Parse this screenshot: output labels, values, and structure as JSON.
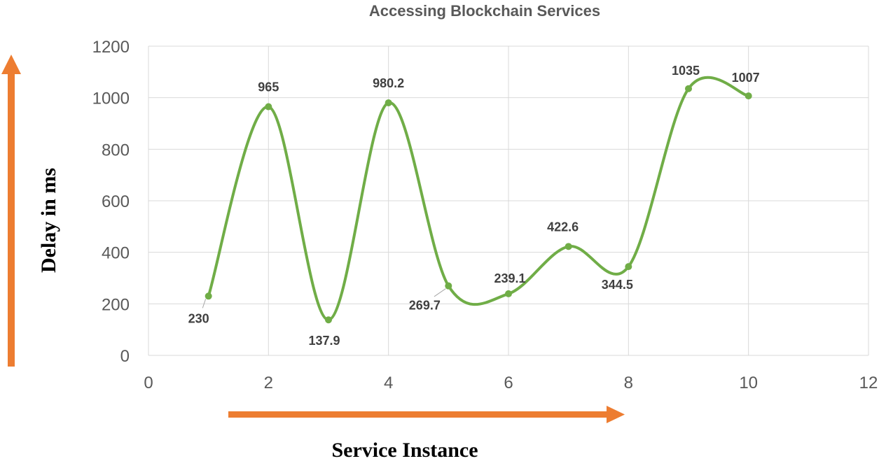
{
  "colors": {
    "line": "#70ad47",
    "arrow": "#ed7d31",
    "grid": "#d9d9d9",
    "text": "#595959"
  },
  "chart_data": {
    "type": "scatter",
    "title": "Accessing Blockchain Services",
    "xlabel": "Service Instance",
    "ylabel": "Delay in ms",
    "xlim": [
      0,
      12
    ],
    "ylim": [
      0,
      1200
    ],
    "x_ticks": [
      0,
      2,
      4,
      6,
      8,
      10,
      12
    ],
    "y_ticks": [
      0,
      200,
      400,
      600,
      800,
      1000,
      1200
    ],
    "grid": true,
    "smooth": true,
    "series": [
      {
        "x": [
          1,
          2,
          3,
          4,
          5,
          6,
          7,
          8,
          9,
          10
        ],
        "y": [
          230,
          965,
          137.9,
          980.2,
          269.7,
          239.1,
          422.6,
          344.5,
          1035,
          1007
        ],
        "labels": [
          "230",
          "965",
          "137.9",
          "980.2",
          "269.7",
          "239.1",
          "422.6",
          "344.5",
          "1035",
          "1007"
        ]
      }
    ]
  }
}
